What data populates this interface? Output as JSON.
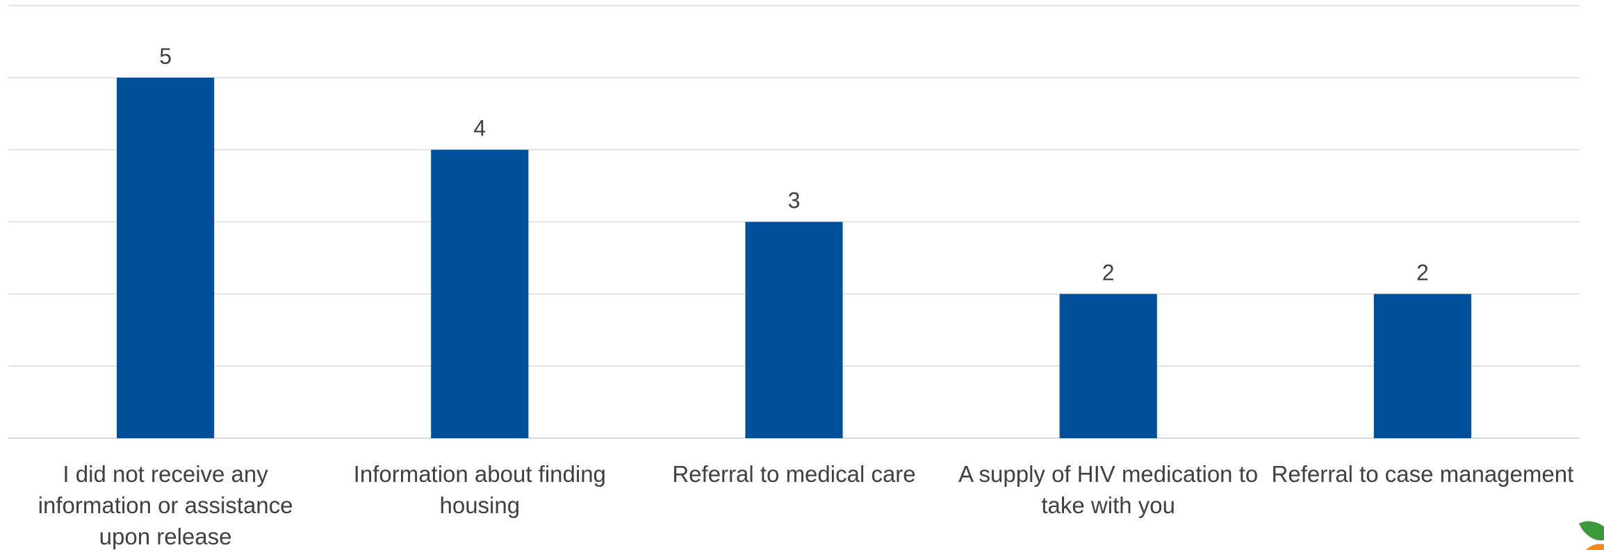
{
  "chart_data": {
    "type": "bar",
    "categories": [
      "I did not receive any information or assistance upon release",
      "Information about finding housing",
      "Referral to medical care",
      "A supply of HIV medication to take with you",
      "Referral to case management"
    ],
    "category_label_lines": [
      [
        "I did not receive any",
        "information or assistance",
        "upon release"
      ],
      [
        "Information about finding",
        "housing"
      ],
      [
        "Referral to medical care"
      ],
      [
        "A supply of HIV medication to",
        "take with you"
      ],
      [
        "Referral to case management"
      ]
    ],
    "values": [
      5,
      4,
      3,
      2,
      2
    ],
    "ylim": [
      0,
      6
    ],
    "grid": true,
    "bar_color": "#00509b",
    "title": "",
    "xlabel": "",
    "ylabel": ""
  },
  "logo": {
    "leaf_color": "#3a9a3a",
    "fruit_color": "#f08a1c"
  }
}
